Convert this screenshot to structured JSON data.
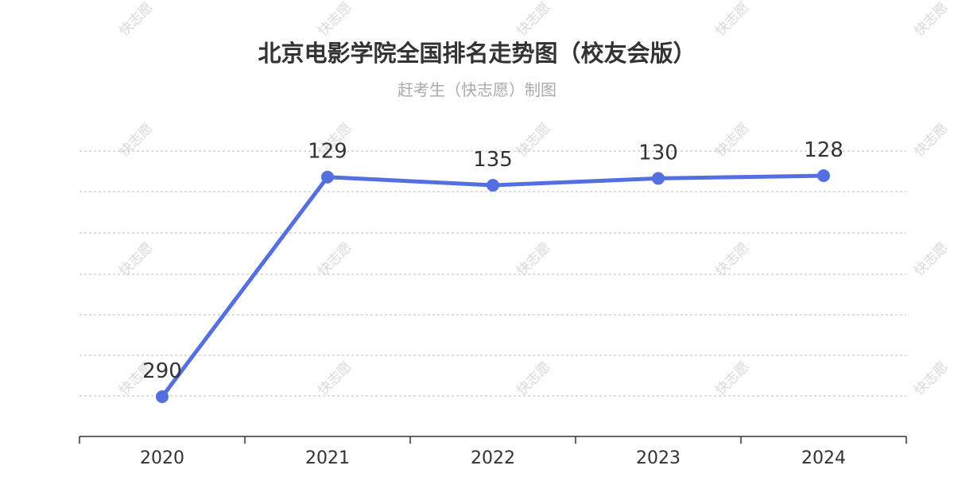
{
  "title": "北京电影学院全国排名走势图（校友会版）",
  "subtitle": "赶考生（快志愿）制图",
  "watermark": "快志愿",
  "colors": {
    "line": "#5470e0",
    "grid": "#bbbbbb",
    "axis": "#333333",
    "text": "#333333"
  },
  "chart_data": {
    "type": "line",
    "categories": [
      "2020",
      "2021",
      "2022",
      "2023",
      "2024"
    ],
    "values": [
      290,
      129,
      135,
      130,
      128
    ],
    "y_inverted": true,
    "grid": true,
    "data_labels": [
      "290",
      "129",
      "135",
      "130",
      "128"
    ]
  }
}
